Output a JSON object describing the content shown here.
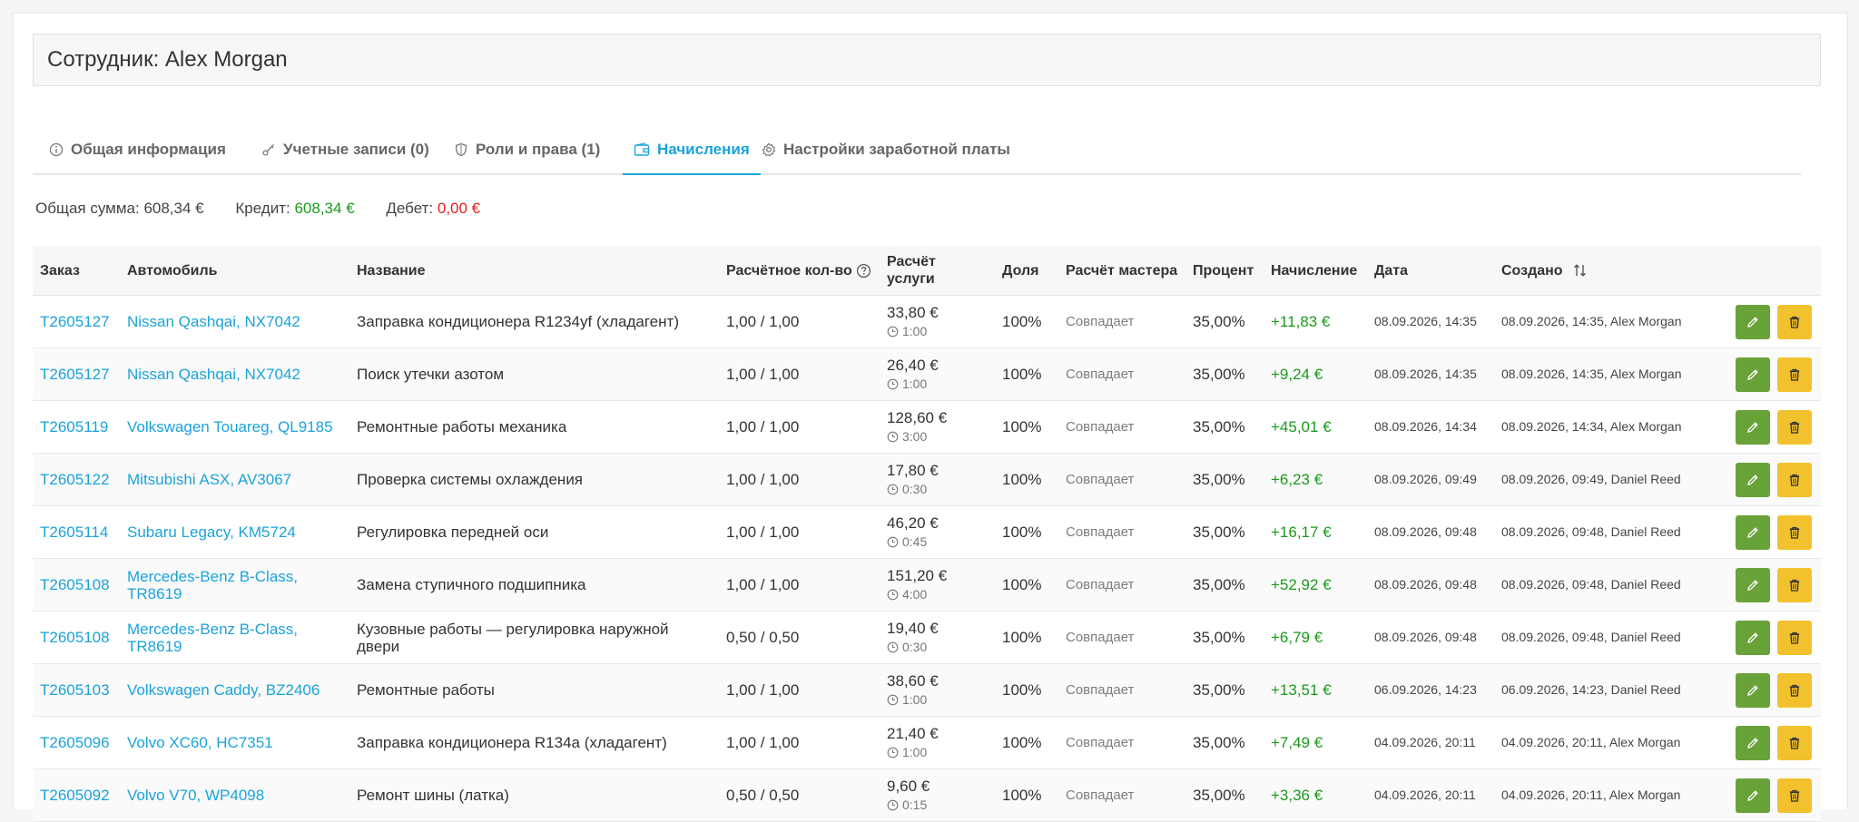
{
  "header": {
    "title": "Сотрудник: Alex Morgan"
  },
  "tabs": [
    {
      "label": "Общая информация",
      "icon": "info-icon",
      "active": false
    },
    {
      "label": "Учетные записи (0)",
      "icon": "key-icon",
      "active": false
    },
    {
      "label": "Роли и права (1)",
      "icon": "shield-icon",
      "active": false
    },
    {
      "label": "Начисления",
      "icon": "wallet-icon",
      "active": true
    },
    {
      "label": "Настройки заработной платы",
      "icon": "gear-icon",
      "active": false
    }
  ],
  "summary": {
    "total_label": "Общая сумма:",
    "total_value": "608,34 €",
    "credit_label": "Кредит:",
    "credit_value": "608,34 €",
    "debit_label": "Дебет:",
    "debit_value": "0,00 €"
  },
  "columns": {
    "order": "Заказ",
    "car": "Автомобиль",
    "name": "Название",
    "qty": "Расчётное кол-во",
    "service": "Расчёт услуги",
    "share": "Доля",
    "master": "Расчёт мастера",
    "percent": "Процент",
    "accrual": "Начисление",
    "date": "Дата",
    "created": "Создано"
  },
  "colors": {
    "accent": "#1aa3db",
    "credit": "#1b9a1b",
    "debit": "#e02020",
    "edit_button": "#6aa23a",
    "delete_button": "#f2c12e"
  },
  "rows": [
    {
      "order": "T2605127",
      "car": "Nissan Qashqai, NX7042",
      "name": "Заправка кондиционера R1234yf (хладагент)",
      "qty": "1,00 / 1,00",
      "price": "33,80 €",
      "time": "1:00",
      "share": "100%",
      "master": "Совпадает",
      "percent": "35,00%",
      "accrual": "+11,83 €",
      "date": "08.09.2026, 14:35",
      "created": "08.09.2026, 14:35, Alex Morgan"
    },
    {
      "order": "T2605127",
      "car": "Nissan Qashqai, NX7042",
      "name": "Поиск утечки азотом",
      "qty": "1,00 / 1,00",
      "price": "26,40 €",
      "time": "1:00",
      "share": "100%",
      "master": "Совпадает",
      "percent": "35,00%",
      "accrual": "+9,24 €",
      "date": "08.09.2026, 14:35",
      "created": "08.09.2026, 14:35, Alex Morgan"
    },
    {
      "order": "T2605119",
      "car": "Volkswagen Touareg, QL9185",
      "name": "Ремонтные работы механика",
      "qty": "1,00 / 1,00",
      "price": "128,60 €",
      "time": "3:00",
      "share": "100%",
      "master": "Совпадает",
      "percent": "35,00%",
      "accrual": "+45,01 €",
      "date": "08.09.2026, 14:34",
      "created": "08.09.2026, 14:34, Alex Morgan"
    },
    {
      "order": "T2605122",
      "car": "Mitsubishi ASX, AV3067",
      "name": "Проверка системы охлаждения",
      "qty": "1,00 / 1,00",
      "price": "17,80 €",
      "time": "0:30",
      "share": "100%",
      "master": "Совпадает",
      "percent": "35,00%",
      "accrual": "+6,23 €",
      "date": "08.09.2026, 09:49",
      "created": "08.09.2026, 09:49, Daniel Reed"
    },
    {
      "order": "T2605114",
      "car": "Subaru Legacy, KM5724",
      "name": "Регулировка передней оси",
      "qty": "1,00 / 1,00",
      "price": "46,20 €",
      "time": "0:45",
      "share": "100%",
      "master": "Совпадает",
      "percent": "35,00%",
      "accrual": "+16,17 €",
      "date": "08.09.2026, 09:48",
      "created": "08.09.2026, 09:48, Daniel Reed"
    },
    {
      "order": "T2605108",
      "car": "Mercedes-Benz B-Class, TR8619",
      "name": "Замена ступичного подшипника",
      "qty": "1,00 / 1,00",
      "price": "151,20 €",
      "time": "4:00",
      "share": "100%",
      "master": "Совпадает",
      "percent": "35,00%",
      "accrual": "+52,92 €",
      "date": "08.09.2026, 09:48",
      "created": "08.09.2026, 09:48, Daniel Reed"
    },
    {
      "order": "T2605108",
      "car": "Mercedes-Benz B-Class, TR8619",
      "name": "Кузовные работы — регулировка наружной двери",
      "qty": "0,50 / 0,50",
      "price": "19,40 €",
      "time": "0:30",
      "share": "100%",
      "master": "Совпадает",
      "percent": "35,00%",
      "accrual": "+6,79 €",
      "date": "08.09.2026, 09:48",
      "created": "08.09.2026, 09:48, Daniel Reed"
    },
    {
      "order": "T2605103",
      "car": "Volkswagen Caddy, BZ2406",
      "name": "Ремонтные работы",
      "qty": "1,00 / 1,00",
      "price": "38,60 €",
      "time": "1:00",
      "share": "100%",
      "master": "Совпадает",
      "percent": "35,00%",
      "accrual": "+13,51 €",
      "date": "06.09.2026, 14:23",
      "created": "06.09.2026, 14:23, Daniel Reed"
    },
    {
      "order": "T2605096",
      "car": "Volvo XC60, HC7351",
      "name": "Заправка кондиционера R134a (хладагент)",
      "qty": "1,00 / 1,00",
      "price": "21,40 €",
      "time": "1:00",
      "share": "100%",
      "master": "Совпадает",
      "percent": "35,00%",
      "accrual": "+7,49 €",
      "date": "04.09.2026, 20:11",
      "created": "04.09.2026, 20:11, Alex Morgan"
    },
    {
      "order": "T2605092",
      "car": "Volvo V70, WP4098",
      "name": "Ремонт шины (латка)",
      "qty": "0,50 / 0,50",
      "price": "9,60 €",
      "time": "0:15",
      "share": "100%",
      "master": "Совпадает",
      "percent": "35,00%",
      "accrual": "+3,36 €",
      "date": "04.09.2026, 20:11",
      "created": "04.09.2026, 20:11, Alex Morgan"
    }
  ]
}
